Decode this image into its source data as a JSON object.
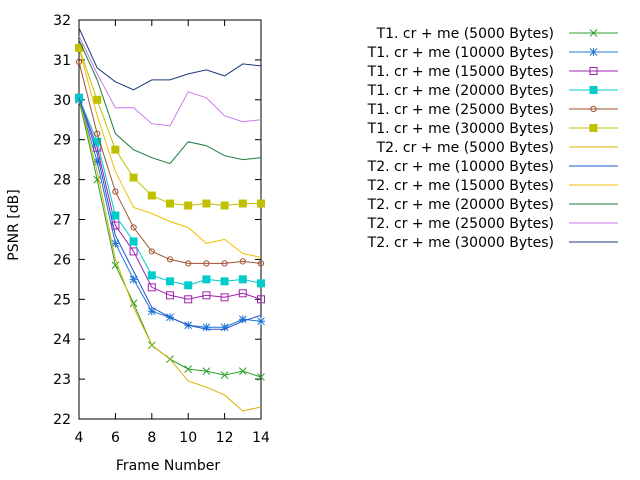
{
  "chart_data": {
    "type": "line",
    "title": "",
    "xlabel": "Frame Number",
    "ylabel": "PSNR [dB]",
    "xlim": [
      4,
      14
    ],
    "ylim": [
      22,
      32
    ],
    "xticks": [
      4,
      6,
      8,
      10,
      12,
      14
    ],
    "yticks": [
      22,
      23,
      24,
      25,
      26,
      27,
      28,
      29,
      30,
      31,
      32
    ],
    "grid": false,
    "legend_position": "top-right",
    "x": [
      4,
      5,
      6,
      7,
      8,
      9,
      10,
      11,
      12,
      13,
      14
    ],
    "series": [
      {
        "name": "T1. cr + me (5000 Bytes)",
        "color": "#2ca02c",
        "marker": "x",
        "values": [
          30.0,
          28.0,
          25.85,
          24.9,
          23.85,
          23.5,
          23.25,
          23.2,
          23.1,
          23.2,
          23.05
        ]
      },
      {
        "name": "T1. cr + me (10000 Bytes)",
        "color": "#1f77d4",
        "marker": "star",
        "values": [
          30.0,
          28.45,
          26.4,
          25.5,
          24.7,
          24.55,
          24.35,
          24.3,
          24.3,
          24.5,
          24.45
        ]
      },
      {
        "name": "T1. cr + me (15000 Bytes)",
        "color": "#a020b0",
        "marker": "open-square",
        "values": [
          30.05,
          28.8,
          26.85,
          26.2,
          25.3,
          25.1,
          25.0,
          25.1,
          25.05,
          25.15,
          25.0
        ]
      },
      {
        "name": "T1. cr + me (20000 Bytes)",
        "color": "#00cccc",
        "marker": "filled-square",
        "values": [
          30.05,
          28.95,
          27.1,
          26.45,
          25.6,
          25.45,
          25.35,
          25.5,
          25.45,
          25.5,
          25.4
        ]
      },
      {
        "name": "T1. cr + me (25000 Bytes)",
        "color": "#a0522d",
        "marker": "open-circle",
        "values": [
          30.95,
          29.15,
          27.7,
          26.8,
          26.2,
          26.0,
          25.9,
          25.9,
          25.9,
          25.95,
          25.9
        ]
      },
      {
        "name": "T1. cr + me (30000 Bytes)",
        "color": "#c0c000",
        "marker": "filled-square",
        "values": [
          31.3,
          30.0,
          28.75,
          28.05,
          27.6,
          27.4,
          27.35,
          27.4,
          27.35,
          27.4,
          27.4
        ]
      },
      {
        "name": "T2. cr + me (5000 Bytes)",
        "color": "#d4b400",
        "marker": "",
        "values": [
          30.05,
          28.2,
          26.0,
          24.8,
          23.85,
          23.5,
          22.95,
          22.8,
          22.6,
          22.2,
          22.3
        ]
      },
      {
        "name": "T2. cr + me (10000 Bytes)",
        "color": "#2050d0",
        "marker": "",
        "values": [
          30.05,
          28.65,
          26.6,
          25.7,
          24.8,
          24.55,
          24.35,
          24.25,
          24.25,
          24.45,
          24.6
        ]
      },
      {
        "name": "T2. cr + me (15000 Bytes)",
        "color": "#f0c000",
        "marker": "",
        "values": [
          31.3,
          29.6,
          28.2,
          27.3,
          27.15,
          26.95,
          26.8,
          26.4,
          26.5,
          26.15,
          26.05
        ]
      },
      {
        "name": "T2. cr + me (20000 Bytes)",
        "color": "#1a7a3a",
        "marker": "",
        "values": [
          31.5,
          30.5,
          29.15,
          28.75,
          28.55,
          28.4,
          28.95,
          28.85,
          28.6,
          28.5,
          28.55
        ]
      },
      {
        "name": "T2. cr + me (25000 Bytes)",
        "color": "#cc77ee",
        "marker": "",
        "values": [
          31.6,
          30.65,
          29.8,
          29.8,
          29.4,
          29.35,
          30.2,
          30.05,
          29.6,
          29.45,
          29.5
        ]
      },
      {
        "name": "T2. cr + me (30000 Bytes)",
        "color": "#1a3a7a",
        "marker": "",
        "values": [
          31.8,
          30.8,
          30.45,
          30.25,
          30.5,
          30.5,
          30.65,
          30.75,
          30.6,
          30.9,
          30.85
        ]
      }
    ]
  }
}
